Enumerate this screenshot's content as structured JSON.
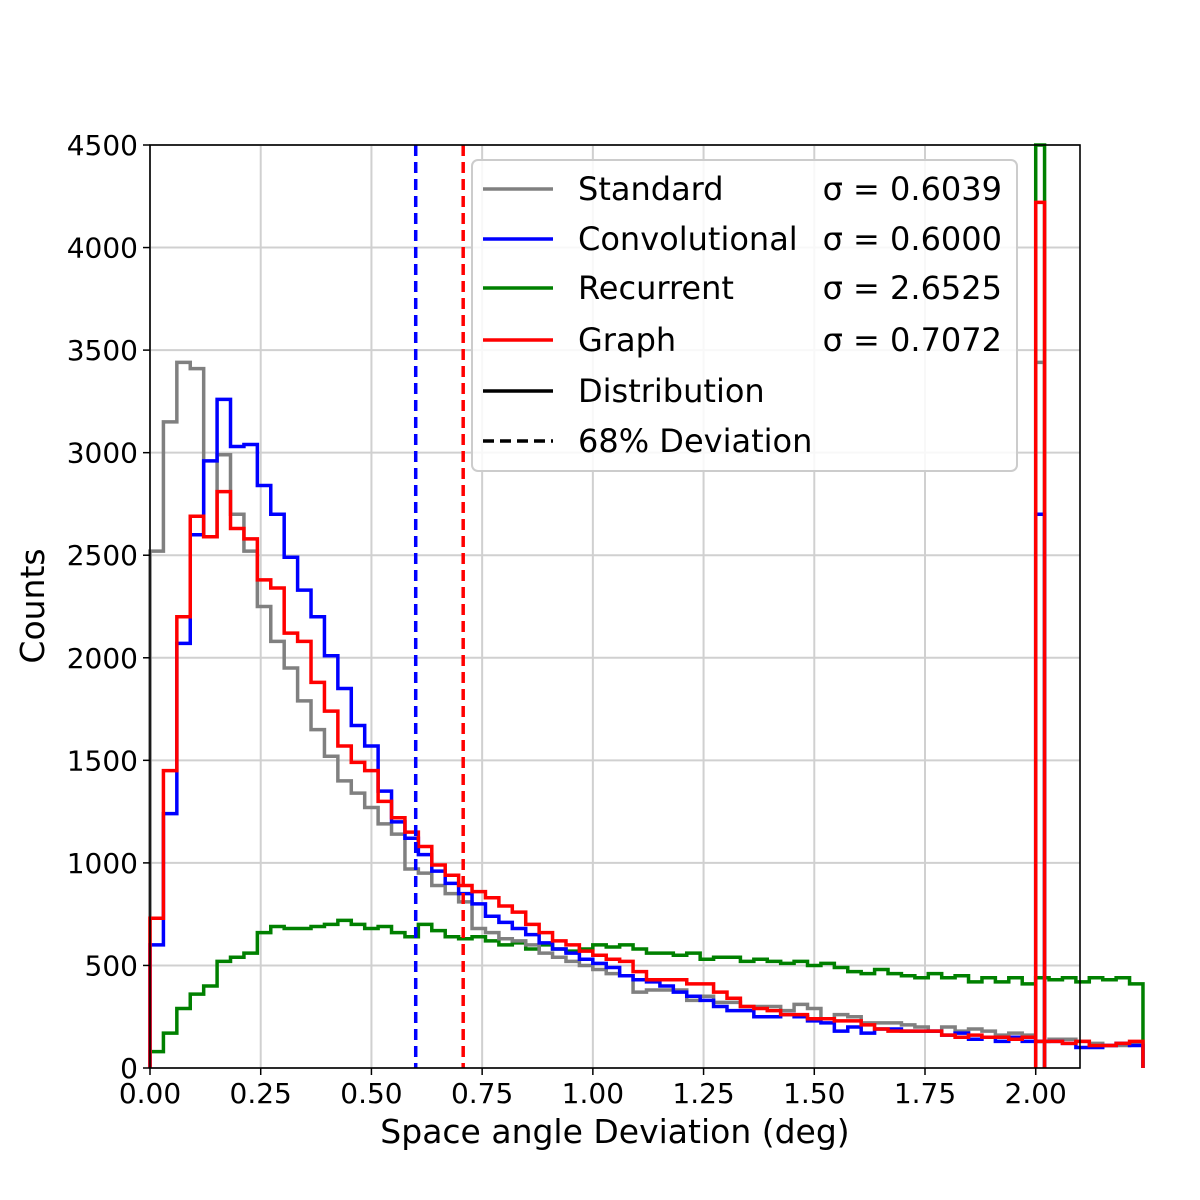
{
  "chart_data": {
    "type": "histogram",
    "xlabel": "Space angle Deviation (deg)",
    "ylabel": "Counts",
    "xlim": [
      0.0,
      2.1
    ],
    "ylim": [
      0,
      4500
    ],
    "x_ticks": [
      "0.00",
      "0.25",
      "0.50",
      "0.75",
      "1.00",
      "1.25",
      "1.50",
      "1.75",
      "2.00"
    ],
    "x_tick_values": [
      0,
      0.25,
      0.5,
      0.75,
      1.0,
      1.25,
      1.5,
      1.75,
      2.0
    ],
    "y_ticks": [
      "0",
      "500",
      "1000",
      "1500",
      "2000",
      "2500",
      "3000",
      "3500",
      "4000",
      "4500"
    ],
    "y_tick_values": [
      0,
      500,
      1000,
      1500,
      2000,
      2500,
      3000,
      3500,
      4000,
      4500
    ],
    "grid": true,
    "legend_position": "top-right",
    "bin_edges_start": 0.0,
    "bin_width": 0.0303,
    "overflow_bin": [
      2.0,
      2.02
    ],
    "series": [
      {
        "name": "Standard",
        "sigma_label": "σ = 0.6039",
        "color": "#808080",
        "values": [
          2520,
          3150,
          3440,
          3410,
          2590,
          2990,
          2700,
          2520,
          2250,
          2080,
          1950,
          1790,
          1650,
          1520,
          1400,
          1340,
          1270,
          1190,
          1140,
          970,
          950,
          890,
          850,
          810,
          680,
          660,
          630,
          620,
          600,
          560,
          540,
          520,
          500,
          480,
          460,
          450,
          370,
          380,
          380,
          380,
          330,
          350,
          320,
          320,
          300,
          300,
          300,
          280,
          310,
          290,
          240,
          260,
          250,
          220,
          220,
          220,
          210,
          200,
          180,
          200,
          180,
          190,
          180,
          160,
          170,
          160,
          130,
          140,
          140,
          130,
          120,
          110,
          110,
          120
        ],
        "overflow": 3440
      },
      {
        "name": "Convolutional",
        "sigma_label": "σ = 0.6000",
        "color": "#0000ff",
        "values": [
          600,
          1240,
          2070,
          2600,
          2960,
          3260,
          3030,
          3040,
          2840,
          2700,
          2490,
          2330,
          2200,
          2010,
          1850,
          1670,
          1570,
          1350,
          1200,
          1120,
          1040,
          960,
          900,
          850,
          800,
          740,
          710,
          680,
          650,
          610,
          580,
          560,
          530,
          510,
          490,
          450,
          430,
          420,
          400,
          370,
          350,
          330,
          300,
          280,
          280,
          250,
          250,
          260,
          250,
          230,
          220,
          180,
          200,
          170,
          190,
          190,
          180,
          180,
          180,
          160,
          170,
          140,
          150,
          130,
          150,
          130,
          130,
          130,
          120,
          100,
          100,
          110,
          120,
          110
        ],
        "overflow": 2700
      },
      {
        "name": "Recurrent",
        "sigma_label": "σ = 2.6525",
        "color": "#008000",
        "values": [
          80,
          170,
          290,
          360,
          400,
          520,
          540,
          560,
          660,
          690,
          680,
          680,
          690,
          700,
          720,
          700,
          680,
          690,
          660,
          640,
          700,
          670,
          640,
          630,
          640,
          620,
          600,
          610,
          580,
          600,
          580,
          570,
          580,
          600,
          590,
          600,
          580,
          560,
          560,
          550,
          560,
          530,
          540,
          540,
          520,
          530,
          520,
          510,
          520,
          500,
          510,
          490,
          470,
          460,
          480,
          460,
          450,
          440,
          460,
          440,
          450,
          420,
          440,
          420,
          440,
          410,
          440,
          430,
          440,
          420,
          440,
          430,
          440,
          410
        ],
        "overflow": 4500
      },
      {
        "name": "Graph",
        "sigma_label": "σ = 0.7072",
        "color": "#ff0000",
        "values": [
          730,
          1450,
          2200,
          2690,
          2590,
          2810,
          2630,
          2580,
          2380,
          2340,
          2120,
          2080,
          1880,
          1740,
          1570,
          1490,
          1450,
          1300,
          1220,
          1150,
          1080,
          990,
          940,
          890,
          860,
          830,
          790,
          760,
          700,
          660,
          620,
          600,
          570,
          550,
          530,
          520,
          470,
          430,
          430,
          430,
          410,
          410,
          370,
          340,
          300,
          290,
          280,
          260,
          260,
          240,
          240,
          230,
          230,
          210,
          190,
          180,
          180,
          180,
          180,
          160,
          150,
          160,
          150,
          150,
          140,
          150,
          130,
          130,
          120,
          130,
          110,
          110,
          120,
          130
        ],
        "overflow": 4220
      }
    ],
    "deviation_lines": [
      {
        "series": "Convolutional",
        "x": 0.6,
        "color": "#0000ff"
      },
      {
        "series": "Graph",
        "x": 0.7072,
        "color": "#ff0000"
      }
    ],
    "legend_extra": [
      {
        "label": "Distribution",
        "style": "solid",
        "color": "#000000"
      },
      {
        "label": "68% Deviation",
        "style": "dashed",
        "color": "#000000"
      }
    ]
  }
}
